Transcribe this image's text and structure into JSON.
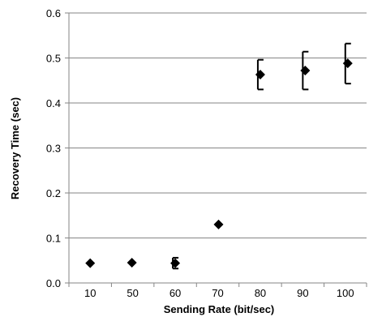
{
  "chart_data": {
    "type": "scatter",
    "xlabel": "Sending Rate (bit/sec)",
    "ylabel": "Recovery Time (sec)",
    "categories": [
      "10",
      "50",
      "60",
      "70",
      "80",
      "90",
      "100"
    ],
    "values": [
      0.044,
      0.045,
      0.044,
      0.13,
      0.463,
      0.472,
      0.488
    ],
    "error_bars": [
      null,
      null,
      {
        "low": 0.032,
        "high": 0.056
      },
      null,
      {
        "low": 0.43,
        "high": 0.496
      },
      {
        "low": 0.43,
        "high": 0.514
      },
      {
        "low": 0.443,
        "high": 0.532
      }
    ],
    "ylim": [
      0,
      0.6
    ],
    "yticks": [
      "0.0",
      "0.1",
      "0.2",
      "0.3",
      "0.4",
      "0.5",
      "0.6"
    ],
    "grid": true,
    "legend": "none",
    "colors": {
      "marker": "#000000",
      "grid": "#868686",
      "axis": "#868686"
    }
  }
}
